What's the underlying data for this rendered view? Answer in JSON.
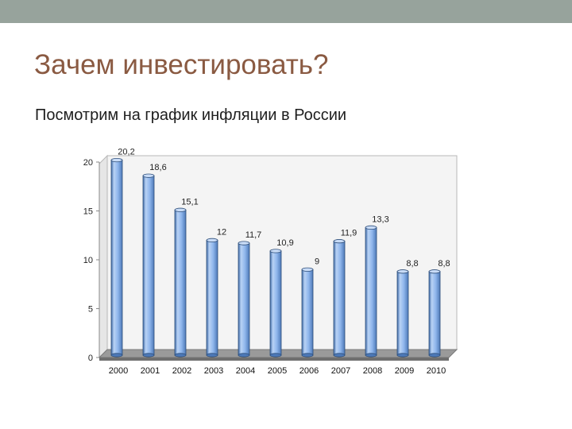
{
  "slide": {
    "title": "Зачем инвестировать?",
    "subtitle": "Посмотрим на график инфляции в России"
  },
  "colors": {
    "top_band": "#97a39c",
    "title": "#8a5a42",
    "bar_fill": "#8fb6ec",
    "bar_dark": "#2f4f7a",
    "wall": "#f4f4f4",
    "floor": "#9a9a9a"
  },
  "chart_data": {
    "type": "bar",
    "title": "",
    "xlabel": "",
    "ylabel": "",
    "categories": [
      "2000",
      "2001",
      "2002",
      "2003",
      "2004",
      "2005",
      "2006",
      "2007",
      "2008",
      "2009",
      "2010"
    ],
    "values": [
      20.2,
      18.6,
      15.1,
      12,
      11.7,
      10.9,
      9,
      11.9,
      13.3,
      8.8,
      8.8
    ],
    "data_labels": [
      "20,2",
      "18,6",
      "15,1",
      "12",
      "11,7",
      "10,9",
      "9",
      "11,9",
      "13,3",
      "8,8",
      "8,8"
    ],
    "ylim": [
      0,
      20
    ],
    "yticks": [
      0,
      5,
      10,
      15,
      20
    ],
    "grid": false,
    "legend": "none"
  }
}
